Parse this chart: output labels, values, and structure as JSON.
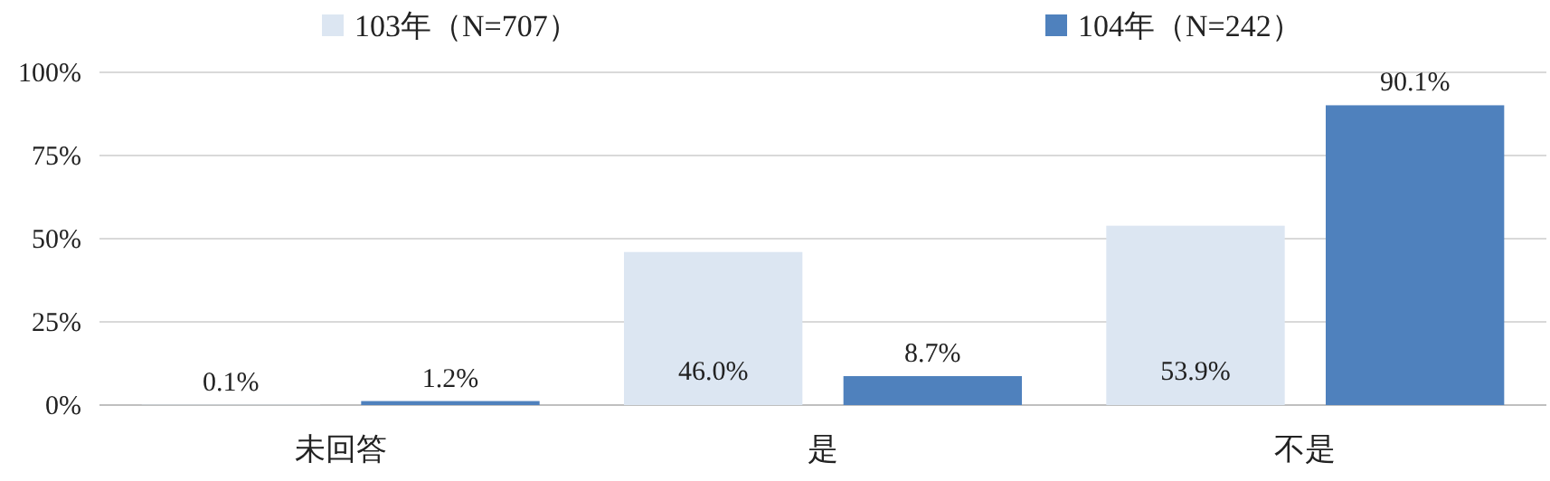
{
  "chart_data": {
    "type": "bar",
    "categories": [
      "未回答",
      "是",
      "不是"
    ],
    "series": [
      {
        "name": "103年（N=707）",
        "color": "#dce6f2",
        "values": [
          0.1,
          46.0,
          53.9
        ],
        "value_labels": [
          "0.1%",
          "46.0%",
          "53.9%"
        ]
      },
      {
        "name": "104年（N=242）",
        "color": "#4f81bd",
        "values": [
          1.2,
          8.7,
          90.1
        ],
        "value_labels": [
          "1.2%",
          "8.7%",
          "90.1%"
        ]
      }
    ],
    "ylim": [
      0,
      100
    ],
    "yticks": [
      {
        "value": 0,
        "label": "0%"
      },
      {
        "value": 25,
        "label": "25%"
      },
      {
        "value": 50,
        "label": "50%"
      },
      {
        "value": 75,
        "label": "75%"
      },
      {
        "value": 100,
        "label": "100%"
      }
    ],
    "grid": "y",
    "legend": "top"
  }
}
